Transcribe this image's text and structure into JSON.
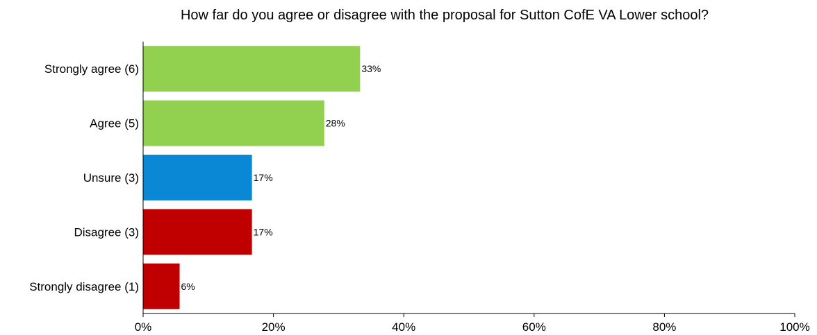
{
  "chart_data": {
    "type": "bar",
    "orientation": "horizontal",
    "title": "How far do you agree or disagree with the proposal for Sutton CofE VA Lower school?",
    "categories": [
      "Strongly agree (6)",
      "Agree (5)",
      "Unsure (3)",
      "Disagree (3)",
      "Strongly disagree (1)"
    ],
    "values": [
      33.3,
      27.8,
      16.7,
      16.7,
      5.6
    ],
    "data_labels": [
      "33%",
      "28%",
      "17%",
      "17%",
      "6%"
    ],
    "bar_colors": [
      "#92d050",
      "#92d050",
      "#0a88d6",
      "#c00000",
      "#c00000"
    ],
    "xlim": [
      0,
      100
    ],
    "x_ticks": [
      0,
      20,
      40,
      60,
      80,
      100
    ],
    "x_tick_labels": [
      "0%",
      "20%",
      "40%",
      "60%",
      "80%",
      "100%"
    ],
    "xlabel": "",
    "ylabel": "",
    "grid": false,
    "legend": "none",
    "axis_color": "#000000"
  }
}
